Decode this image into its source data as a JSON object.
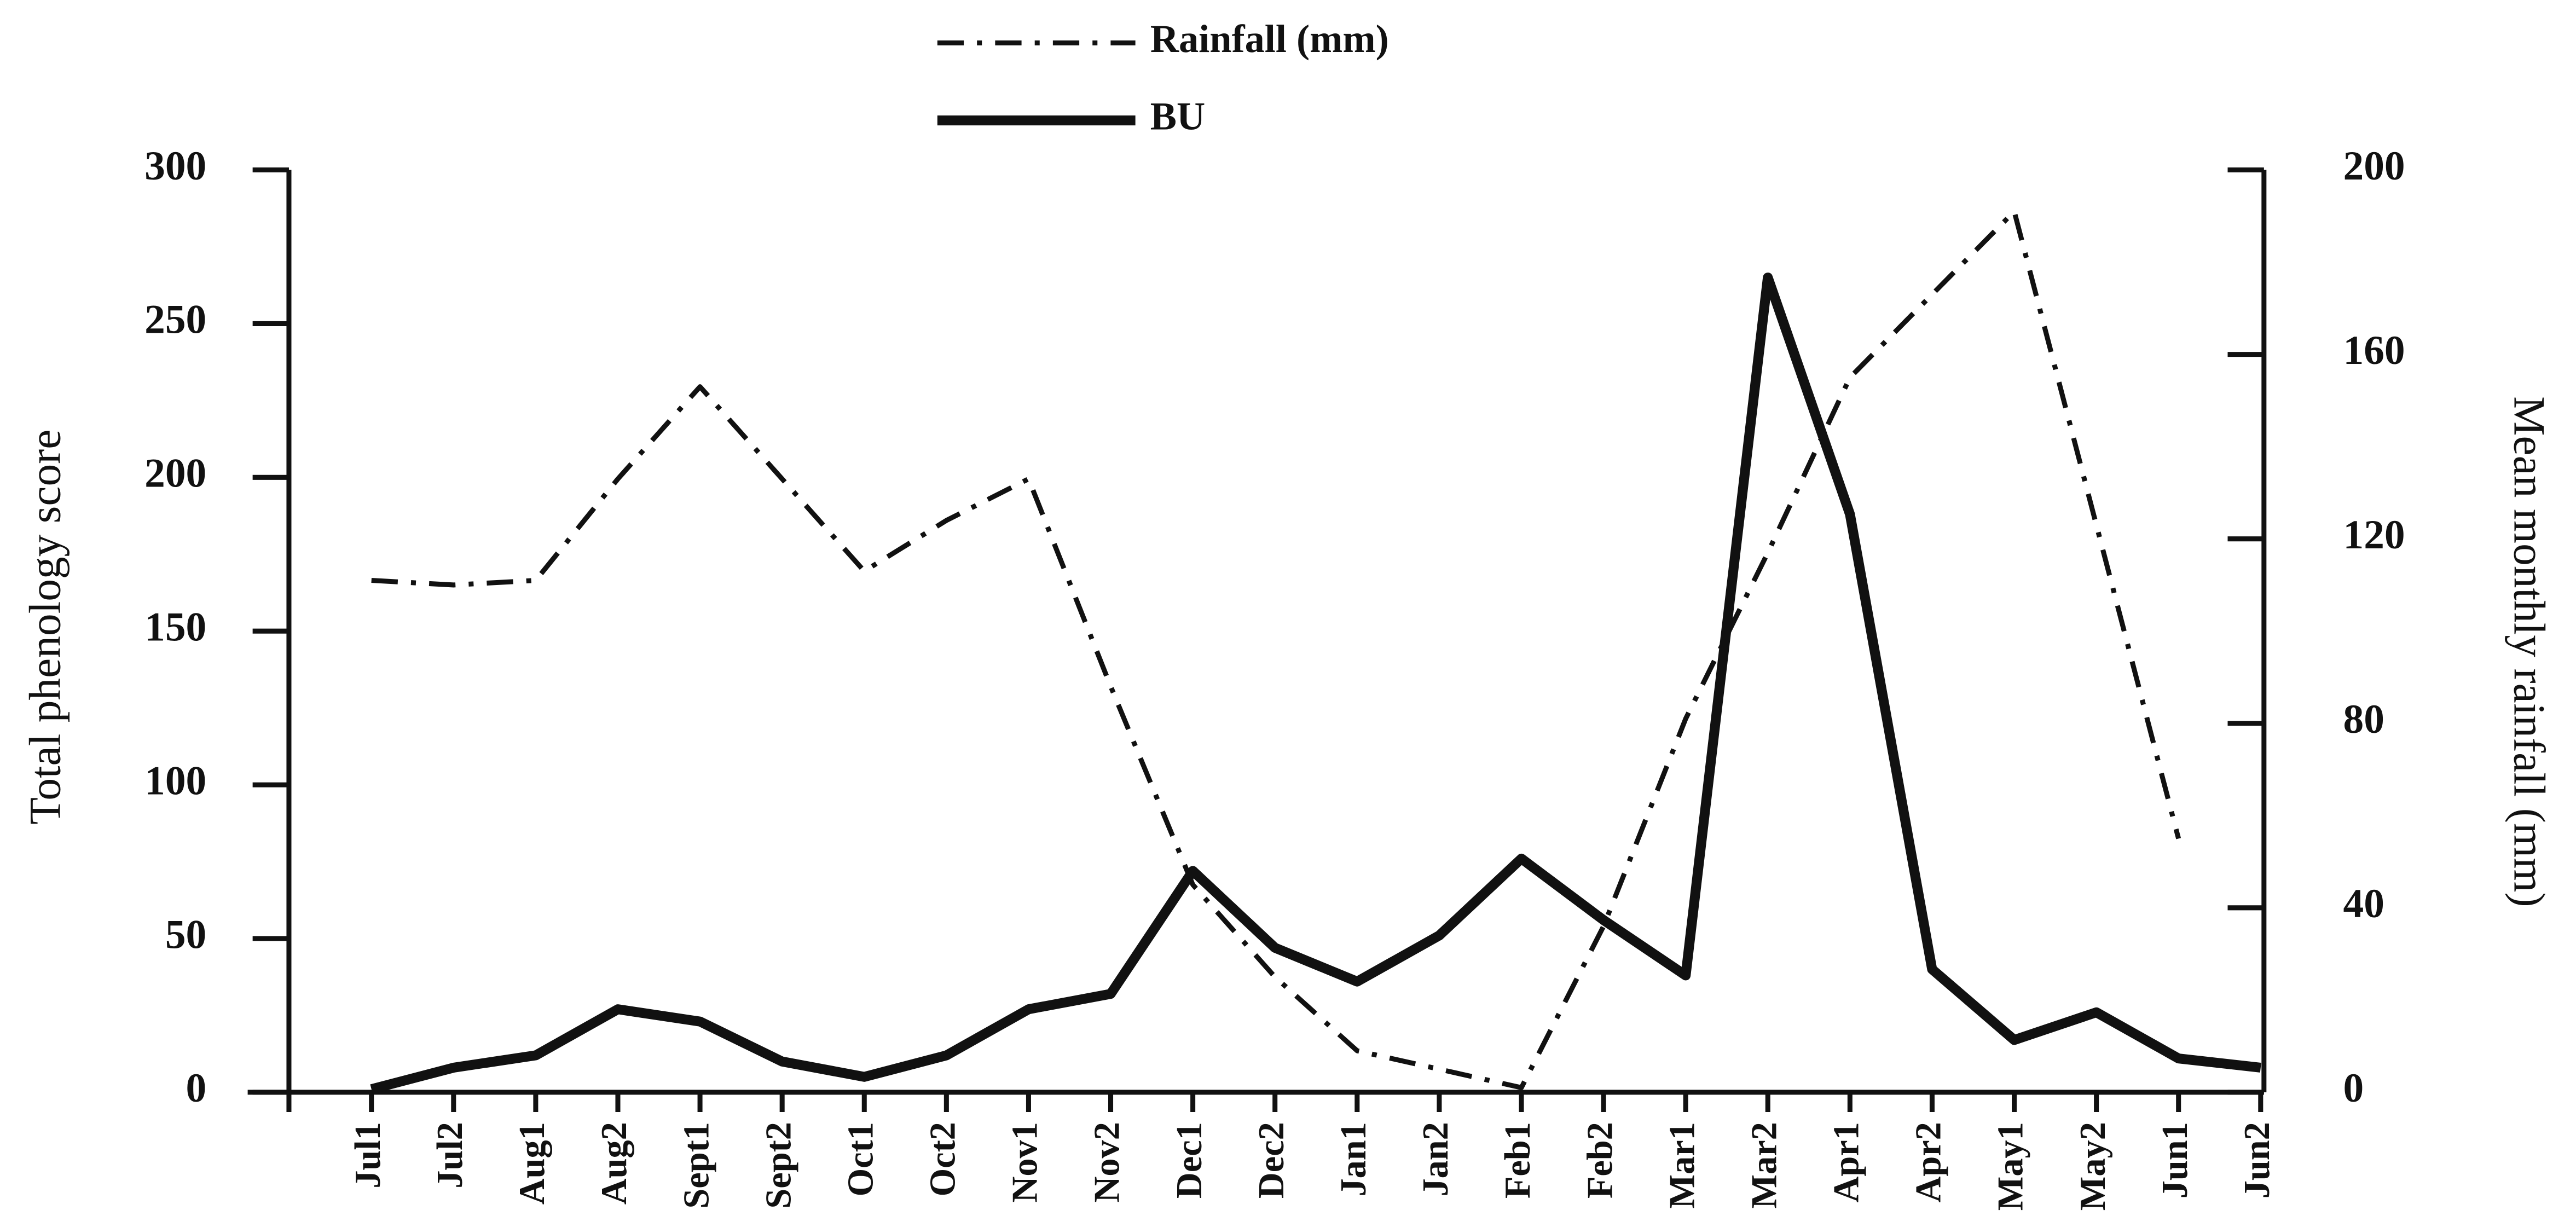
{
  "chart_data": {
    "type": "line",
    "categories": [
      "Jul1",
      "Jul2",
      "Aug1",
      "Aug2",
      "Sept1",
      "Sept2",
      "Oct1",
      "Oct2",
      "Nov1",
      "Nov2",
      "Dec1",
      "Dec2",
      "Jan1",
      "Jan2",
      "Feb1",
      "Feb2",
      "Mar1",
      "Mar2",
      "Apr1",
      "Apr2",
      "May1",
      "May2",
      "Jun1",
      "Jun2"
    ],
    "series": [
      {
        "name": "Rainfall (mm)",
        "color": "#111111",
        "style": "dash-dot",
        "axis": "y2",
        "values": [
          111,
          110,
          111,
          133,
          153,
          133,
          113,
          124,
          133,
          88,
          45,
          25,
          9,
          5,
          1,
          36,
          81,
          117,
          155,
          173,
          191,
          123,
          55,
          null
        ]
      },
      {
        "name": "BU",
        "color": "#111111",
        "style": "solid",
        "values": [
          1,
          8,
          12,
          27,
          23,
          10,
          5,
          12,
          27,
          32,
          72,
          47,
          36,
          51,
          76,
          56,
          38,
          265,
          188,
          40,
          17,
          26,
          11,
          8
        ]
      }
    ],
    "ylabel": "Total phenology score",
    "y2label": "Mean monthly rainfall (mm)",
    "ylim": [
      0,
      300
    ],
    "yticks": [
      0,
      50,
      100,
      150,
      200,
      250,
      300
    ],
    "y2lim": [
      0,
      200
    ],
    "y2ticks": [
      0,
      40,
      80,
      120,
      160,
      200
    ],
    "legend": "top"
  }
}
